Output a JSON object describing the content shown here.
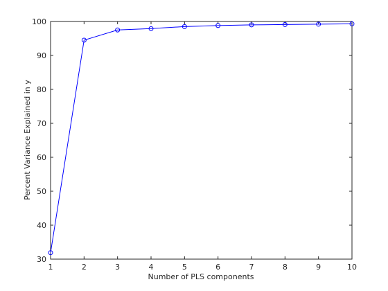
{
  "chart_data": {
    "type": "line",
    "title": "",
    "xlabel": "Number of PLS components",
    "ylabel": "Percent Variance Explained in y",
    "xlim": [
      1,
      10
    ],
    "ylim": [
      30,
      100
    ],
    "x_ticks": [
      1,
      2,
      3,
      4,
      5,
      6,
      7,
      8,
      9,
      10
    ],
    "y_ticks": [
      30,
      40,
      50,
      60,
      70,
      80,
      90,
      100
    ],
    "grid": false,
    "legend": "none",
    "marker": "circle",
    "series": [
      {
        "x": [
          1,
          2,
          3,
          4,
          5,
          6,
          7,
          8,
          9,
          10
        ],
        "values": [
          31.9,
          94.5,
          97.5,
          97.9,
          98.5,
          98.8,
          99.0,
          99.1,
          99.2,
          99.3
        ],
        "color": "#0000ff"
      }
    ]
  }
}
